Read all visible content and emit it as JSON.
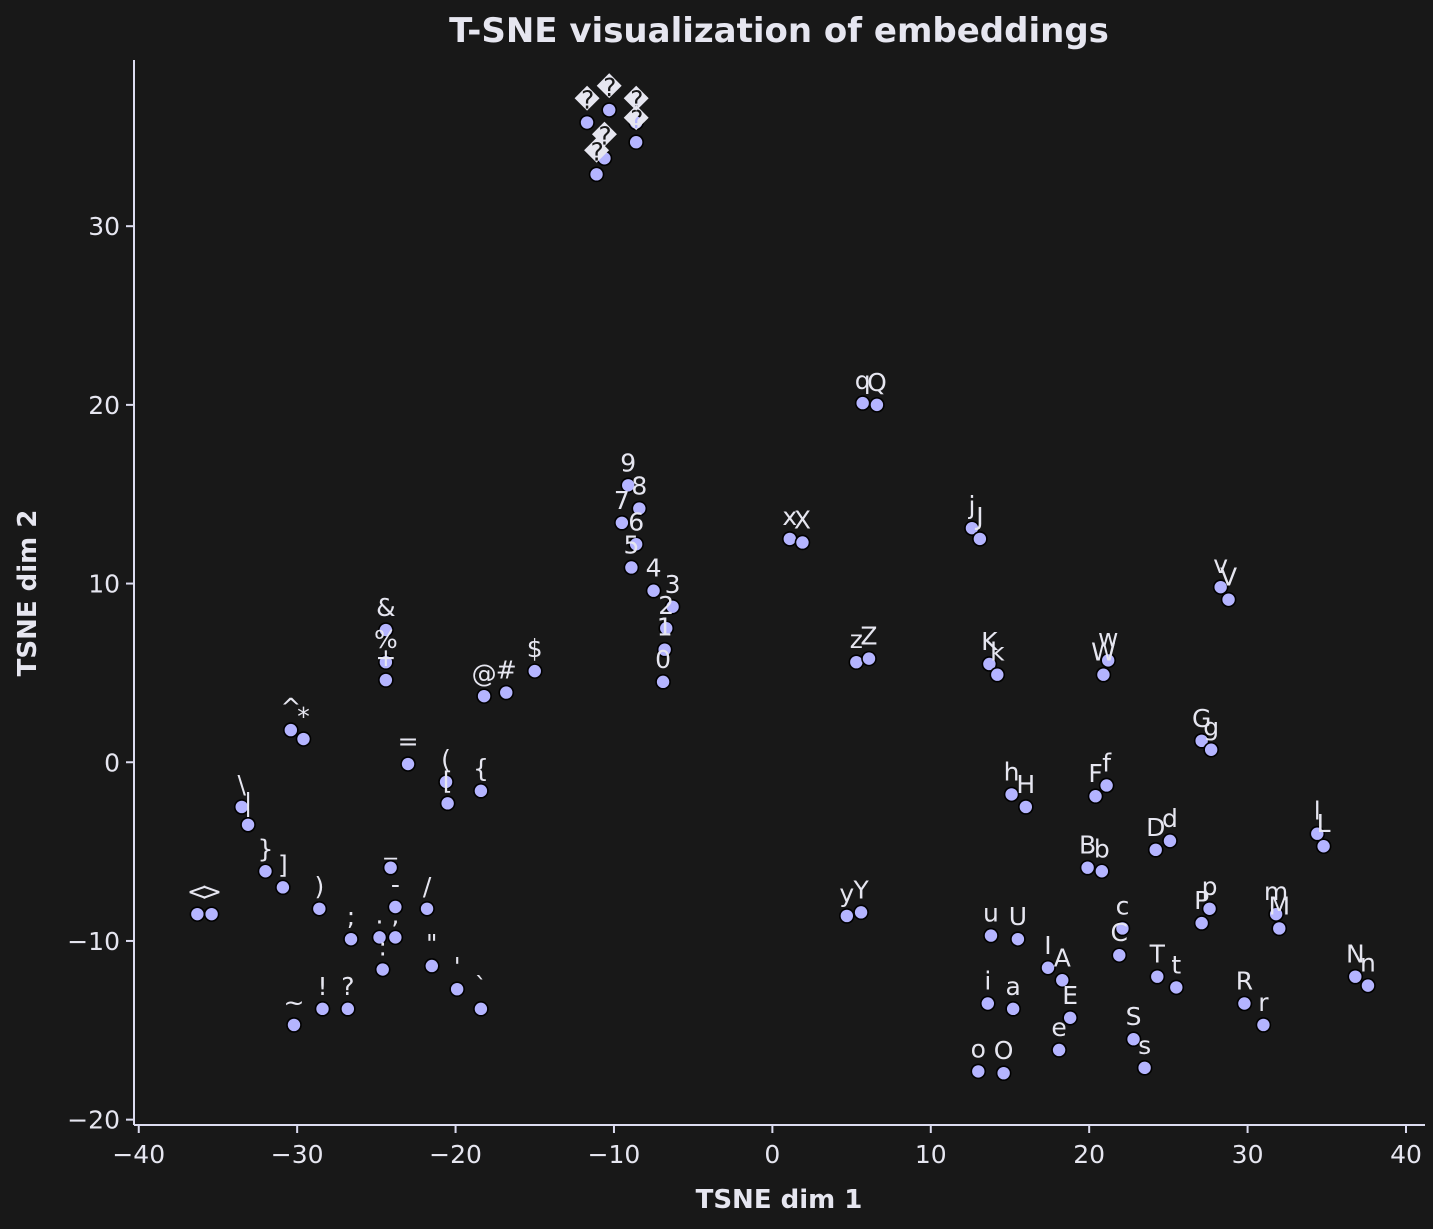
{
  "chart_data": {
    "type": "scatter",
    "title": "T-SNE visualization of embeddings",
    "xlabel": "TSNE dim 1",
    "ylabel": "TSNE dim 2",
    "xlim": [
      -40.3,
      41.2
    ],
    "ylim": [
      -20.3,
      39.3
    ],
    "xticks": [
      -40,
      -30,
      -20,
      -10,
      0,
      10,
      20,
      30,
      40
    ],
    "yticks": [
      -20,
      -10,
      0,
      10,
      20,
      30
    ],
    "xtick_labels": [
      "−40",
      "−30",
      "−20",
      "−10",
      "0",
      "10",
      "20",
      "30",
      "40"
    ],
    "ytick_labels": [
      "−20",
      "−10",
      "0",
      "10",
      "20",
      "30"
    ],
    "grid": false,
    "colors": {
      "background": "#181818",
      "marker": "#b4b4ff",
      "marker_edge": "#000000",
      "text": "#e6e6f0"
    },
    "points": [
      {
        "label": "<",
        "x": -36.3,
        "y": -8.5
      },
      {
        "label": ">",
        "x": -35.4,
        "y": -8.5
      },
      {
        "label": "\\",
        "x": -33.5,
        "y": -2.5
      },
      {
        "label": "|",
        "x": -33.1,
        "y": -3.5
      },
      {
        "label": "}",
        "x": -32.0,
        "y": -6.1
      },
      {
        "label": "]",
        "x": -30.9,
        "y": -7.0
      },
      {
        "label": "^",
        "x": -30.4,
        "y": 1.8
      },
      {
        "label": "*",
        "x": -29.6,
        "y": 1.3
      },
      {
        "label": "~",
        "x": -30.2,
        "y": -14.7
      },
      {
        "label": ")",
        "x": -28.6,
        "y": -8.2
      },
      {
        "label": "!",
        "x": -28.4,
        "y": -13.8
      },
      {
        "label": ";",
        "x": -26.6,
        "y": -9.9
      },
      {
        "label": "?",
        "x": -26.8,
        "y": -13.8
      },
      {
        "label": "&",
        "x": -24.4,
        "y": 7.4
      },
      {
        "label": "%",
        "x": -24.4,
        "y": 5.6
      },
      {
        "label": "+",
        "x": -24.4,
        "y": 4.6
      },
      {
        "label": "=",
        "x": -23.0,
        "y": -0.1
      },
      {
        "label": "_",
        "x": -24.1,
        "y": -5.9
      },
      {
        "label": "-",
        "x": -23.8,
        "y": -8.1
      },
      {
        "label": ".",
        "x": -24.8,
        "y": -9.8
      },
      {
        "label": ",",
        "x": -23.8,
        "y": -9.8
      },
      {
        "label": ":",
        "x": -24.6,
        "y": -11.6
      },
      {
        "label": "/",
        "x": -21.8,
        "y": -8.2
      },
      {
        "label": "\"",
        "x": -21.5,
        "y": -11.4
      },
      {
        "label": "'",
        "x": -19.9,
        "y": -12.7
      },
      {
        "label": "`",
        "x": -18.4,
        "y": -13.8
      },
      {
        "label": "(",
        "x": -20.6,
        "y": -1.1
      },
      {
        "label": "[",
        "x": -20.5,
        "y": -2.3
      },
      {
        "label": "{",
        "x": -18.4,
        "y": -1.6
      },
      {
        "label": "@",
        "x": -18.2,
        "y": 3.7
      },
      {
        "label": "#",
        "x": -16.8,
        "y": 3.9
      },
      {
        "label": "$",
        "x": -15.0,
        "y": 5.1
      },
      {
        "label": "�",
        "x": -11.7,
        "y": 35.8
      },
      {
        "label": "�",
        "x": -10.3,
        "y": 36.5
      },
      {
        "label": "�",
        "x": -8.6,
        "y": 35.8
      },
      {
        "label": "�",
        "x": -10.6,
        "y": 33.8
      },
      {
        "label": "�",
        "x": -11.1,
        "y": 32.9
      },
      {
        "label": "�",
        "x": -8.6,
        "y": 34.7
      },
      {
        "label": "9",
        "x": -9.1,
        "y": 15.5
      },
      {
        "label": "8",
        "x": -8.4,
        "y": 14.2
      },
      {
        "label": "7",
        "x": -9.5,
        "y": 13.4
      },
      {
        "label": "6",
        "x": -8.6,
        "y": 12.2
      },
      {
        "label": "5",
        "x": -8.9,
        "y": 10.9
      },
      {
        "label": "4",
        "x": -7.5,
        "y": 9.6
      },
      {
        "label": "3",
        "x": -6.3,
        "y": 8.7
      },
      {
        "label": "2",
        "x": -6.7,
        "y": 7.5
      },
      {
        "label": "1",
        "x": -6.8,
        "y": 6.3
      },
      {
        "label": "0",
        "x": -6.9,
        "y": 4.5
      },
      {
        "label": "x",
        "x": 1.1,
        "y": 12.5
      },
      {
        "label": "X",
        "x": 1.9,
        "y": 12.3
      },
      {
        "label": "q",
        "x": 5.7,
        "y": 20.1
      },
      {
        "label": "Q",
        "x": 6.6,
        "y": 20.0
      },
      {
        "label": "z",
        "x": 5.3,
        "y": 5.6
      },
      {
        "label": "Z",
        "x": 6.1,
        "y": 5.8
      },
      {
        "label": "y",
        "x": 4.7,
        "y": -8.6
      },
      {
        "label": "Y",
        "x": 5.6,
        "y": -8.4
      },
      {
        "label": "j",
        "x": 12.6,
        "y": 13.1
      },
      {
        "label": "J",
        "x": 13.1,
        "y": 12.5
      },
      {
        "label": "K",
        "x": 13.7,
        "y": 5.5
      },
      {
        "label": "k",
        "x": 14.2,
        "y": 4.9
      },
      {
        "label": "h",
        "x": 15.1,
        "y": -1.8
      },
      {
        "label": "H",
        "x": 16.0,
        "y": -2.5
      },
      {
        "label": "u",
        "x": 13.8,
        "y": -9.7
      },
      {
        "label": "U",
        "x": 15.5,
        "y": -9.9
      },
      {
        "label": "i",
        "x": 13.6,
        "y": -13.5
      },
      {
        "label": "a",
        "x": 15.2,
        "y": -13.8
      },
      {
        "label": "o",
        "x": 13.0,
        "y": -17.3
      },
      {
        "label": "O",
        "x": 14.6,
        "y": -17.4
      },
      {
        "label": "I",
        "x": 17.4,
        "y": -11.5
      },
      {
        "label": "A",
        "x": 18.3,
        "y": -12.2
      },
      {
        "label": "E",
        "x": 18.8,
        "y": -14.3
      },
      {
        "label": "e",
        "x": 18.1,
        "y": -16.1
      },
      {
        "label": "w",
        "x": 21.2,
        "y": 5.7
      },
      {
        "label": "W",
        "x": 20.9,
        "y": 4.9
      },
      {
        "label": "F",
        "x": 20.4,
        "y": -1.9
      },
      {
        "label": "f",
        "x": 21.1,
        "y": -1.3
      },
      {
        "label": "B",
        "x": 19.9,
        "y": -5.9
      },
      {
        "label": "b",
        "x": 20.8,
        "y": -6.1
      },
      {
        "label": "c",
        "x": 22.1,
        "y": -9.3
      },
      {
        "label": "C",
        "x": 21.9,
        "y": -10.8
      },
      {
        "label": "S",
        "x": 22.8,
        "y": -15.5
      },
      {
        "label": "s",
        "x": 23.5,
        "y": -17.1
      },
      {
        "label": "D",
        "x": 24.2,
        "y": -4.9
      },
      {
        "label": "d",
        "x": 25.1,
        "y": -4.4
      },
      {
        "label": "T",
        "x": 24.3,
        "y": -12.0
      },
      {
        "label": "t",
        "x": 25.5,
        "y": -12.6
      },
      {
        "label": "v",
        "x": 28.3,
        "y": 9.8
      },
      {
        "label": "V",
        "x": 28.8,
        "y": 9.1
      },
      {
        "label": "G",
        "x": 27.1,
        "y": 1.2
      },
      {
        "label": "g",
        "x": 27.7,
        "y": 0.7
      },
      {
        "label": "P",
        "x": 27.1,
        "y": -9.0
      },
      {
        "label": "p",
        "x": 27.6,
        "y": -8.2
      },
      {
        "label": "R",
        "x": 29.8,
        "y": -13.5
      },
      {
        "label": "r",
        "x": 31.0,
        "y": -14.7
      },
      {
        "label": "m",
        "x": 31.8,
        "y": -8.5
      },
      {
        "label": "M",
        "x": 32.0,
        "y": -9.3
      },
      {
        "label": "l",
        "x": 34.4,
        "y": -4.0
      },
      {
        "label": "L",
        "x": 34.8,
        "y": -4.7
      },
      {
        "label": "N",
        "x": 36.8,
        "y": -12.0
      },
      {
        "label": "n",
        "x": 37.6,
        "y": -12.5
      }
    ]
  }
}
